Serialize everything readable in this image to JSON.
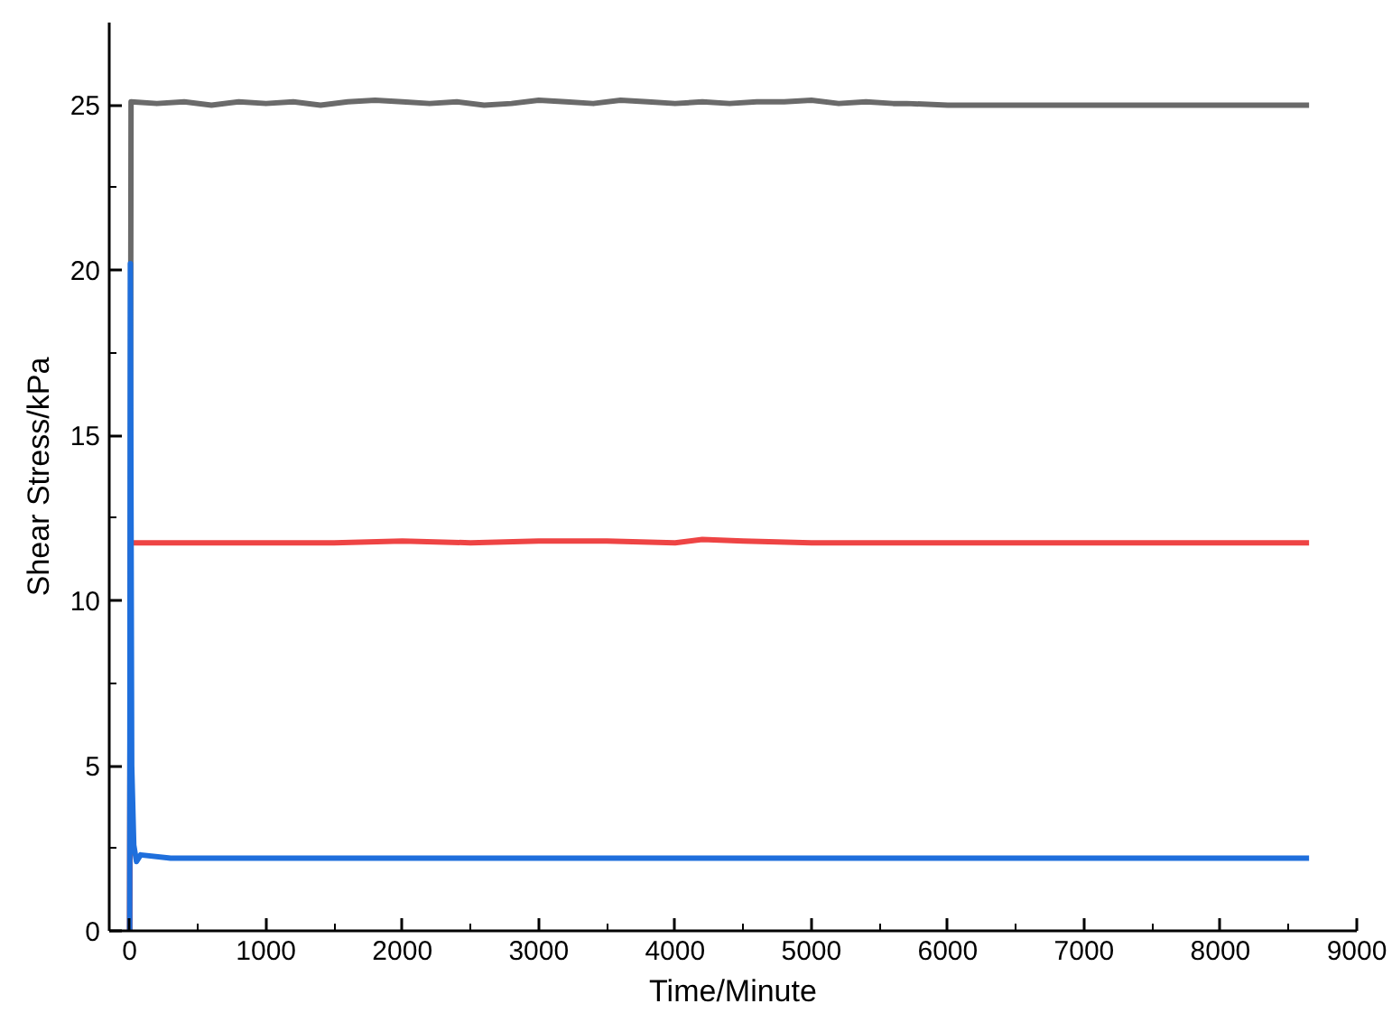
{
  "chart_data": {
    "type": "line",
    "xlabel": "Time/Minute",
    "ylabel": "Shear Stress/kPa",
    "xlim": [
      -150,
      9000
    ],
    "ylim": [
      0,
      27.5
    ],
    "xticks": [
      0,
      1000,
      2000,
      3000,
      4000,
      5000,
      6000,
      7000,
      8000,
      9000
    ],
    "yticks": [
      0,
      5,
      10,
      15,
      20,
      25
    ],
    "grid": false,
    "line_style": "solid",
    "marker": "none",
    "series": [
      {
        "color": "#6a6a6a",
        "x": [
          0,
          10,
          200,
          400,
          600,
          800,
          1000,
          1200,
          1400,
          1600,
          1800,
          2000,
          2200,
          2400,
          2600,
          2800,
          3000,
          3200,
          3400,
          3600,
          3800,
          4000,
          4200,
          4400,
          4600,
          4800,
          5000,
          5200,
          5400,
          5600,
          5700,
          6000,
          7000,
          8000,
          8650
        ],
        "values": [
          0,
          25.1,
          25.05,
          25.1,
          25.0,
          25.1,
          25.05,
          25.1,
          25.0,
          25.1,
          25.15,
          25.1,
          25.05,
          25.1,
          25.0,
          25.05,
          25.15,
          25.1,
          25.05,
          25.15,
          25.1,
          25.05,
          25.1,
          25.05,
          25.1,
          25.1,
          25.15,
          25.05,
          25.1,
          25.05,
          25.05,
          25.0,
          25.0,
          25.0,
          25.0
        ]
      },
      {
        "color": "#ee4444",
        "x": [
          0,
          5,
          10,
          500,
          1000,
          1500,
          2000,
          2500,
          3000,
          3500,
          4000,
          4200,
          4500,
          5000,
          5500,
          6000,
          7000,
          8000,
          8650
        ],
        "values": [
          0,
          11.75,
          11.75,
          11.75,
          11.75,
          11.75,
          11.8,
          11.75,
          11.8,
          11.8,
          11.75,
          11.85,
          11.8,
          11.75,
          11.75,
          11.75,
          11.75,
          11.75,
          11.75
        ]
      },
      {
        "color": "#1f6fdc",
        "x": [
          0,
          5,
          15,
          30,
          50,
          80,
          300,
          1000,
          3000,
          5000,
          7000,
          8650
        ],
        "values": [
          0,
          20.2,
          5,
          2.6,
          2.1,
          2.3,
          2.2,
          2.2,
          2.2,
          2.2,
          2.2,
          2.2
        ]
      }
    ]
  }
}
